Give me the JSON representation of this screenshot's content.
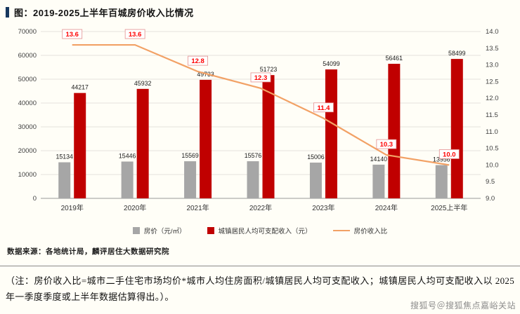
{
  "page": {
    "title": "图：2019-2025上半年百城房价收入比情况",
    "source": "数据来源：各地统计局，麟评居住大数据研究院",
    "note": "（注：房价收入比=城市二手住宅市场均价*城市人均住房面积/城镇居民人均可支配收入；城镇居民人均可支配收入以 2025 年一季度季度或上半年数据估算得出。）。",
    "watermark": "搜狐号＠搜狐焦点嘉峪关站"
  },
  "chart_data": {
    "type": "combo",
    "title": "2019-2025上半年百城房价收入比情况",
    "categories": [
      "2019年",
      "2020年",
      "2021年",
      "2022年",
      "2023年",
      "2024年",
      "2025上半年"
    ],
    "series": [
      {
        "name": "房价（元/㎡）",
        "type": "bar",
        "axis": "left",
        "color": "#a6a6a6",
        "values": [
          15134,
          15446,
          15569,
          15576,
          15006,
          14140,
          13956
        ]
      },
      {
        "name": "城镇居民人均可支配收入（元）",
        "type": "bar",
        "axis": "left",
        "color": "#c00000",
        "values": [
          44217,
          45932,
          49733,
          51723,
          54099,
          56461,
          58499
        ]
      },
      {
        "name": "房价收入比",
        "type": "line",
        "axis": "right",
        "color": "#f2a165",
        "values": [
          13.6,
          13.6,
          12.8,
          12.3,
          11.4,
          10.3,
          10.0
        ]
      }
    ],
    "left_axis": {
      "min": 0,
      "max": 70000,
      "step": 10000
    },
    "right_axis": {
      "min": 9.0,
      "max": 14.0,
      "step": 0.5
    },
    "grid": true,
    "legend_position": "bottom",
    "value_label_color": "#1a1a1a",
    "ratio_label_color": "#ff0000"
  }
}
